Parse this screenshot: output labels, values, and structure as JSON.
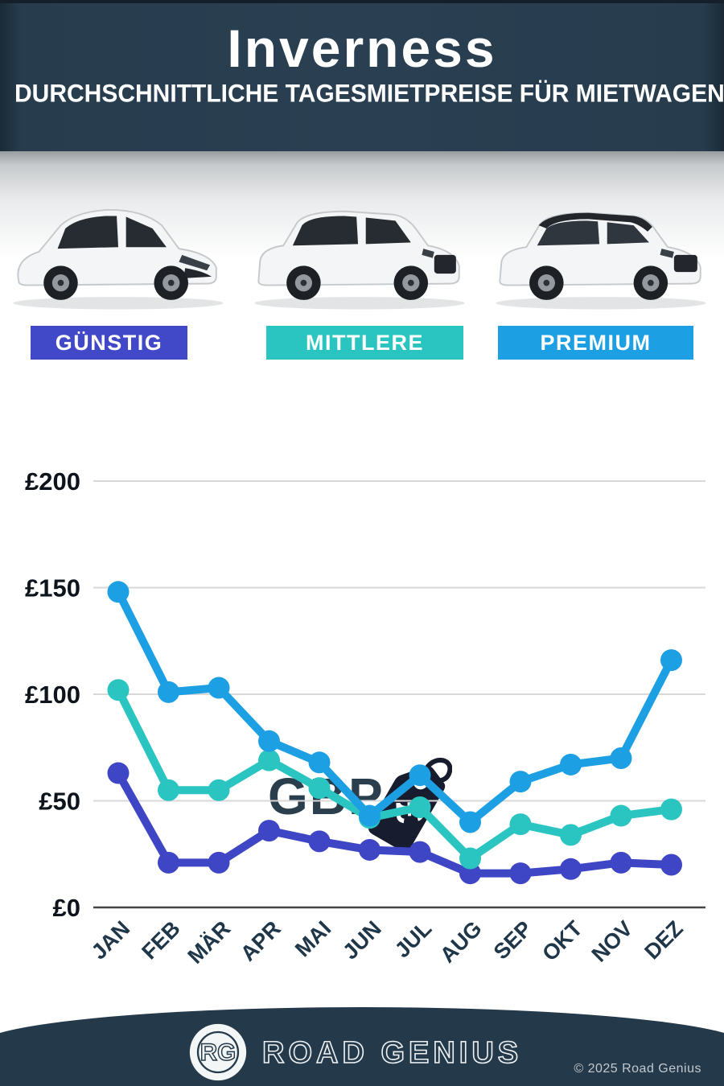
{
  "header": {
    "title": "Inverness",
    "subtitle": "DURCHSCHNITTLICHE TAGESMIETPREISE FÜR MIETWAGEN"
  },
  "tiers": [
    {
      "label": "GÜNSTIG",
      "color": "#4149c9"
    },
    {
      "label": "MITTLERE",
      "color": "#2bc5c1"
    },
    {
      "label": "PREMIUM",
      "color": "#1d9fe4"
    }
  ],
  "currency": {
    "code": "GBP",
    "tag_symbol": "£"
  },
  "chart_data": {
    "type": "line",
    "title": "Durchschnittliche Tagesmietpreise für Mietwagen in Inverness (GBP)",
    "categories": [
      "JAN",
      "FEB",
      "MÄR",
      "APR",
      "MAI",
      "JUN",
      "JUL",
      "AUG",
      "SEP",
      "OKT",
      "NOV",
      "DEZ"
    ],
    "series": [
      {
        "key": "premium",
        "name": "PREMIUM",
        "color": "#1d9fe4",
        "values": [
          148,
          101,
          103,
          78,
          68,
          43,
          62,
          40,
          59,
          67,
          70,
          116
        ]
      },
      {
        "key": "mittlere",
        "name": "MITTLERE",
        "color": "#2bc5c1",
        "values": [
          102,
          55,
          55,
          69,
          56,
          42,
          47,
          23,
          39,
          34,
          43,
          46
        ]
      },
      {
        "key": "guenstig",
        "name": "GÜNSTIG",
        "color": "#3f46c5",
        "values": [
          63,
          21,
          21,
          36,
          31,
          27,
          26,
          16,
          16,
          18,
          21,
          20
        ]
      }
    ],
    "ylabel_prefix": "£",
    "yticks": [
      0,
      50,
      100,
      150,
      200
    ],
    "ylim": [
      0,
      200
    ],
    "grid": true,
    "legend": "none"
  },
  "footer": {
    "logo_initials": "RG",
    "logo_text": "ROAD GENIUS",
    "copyright": "© 2025 Road Genius"
  }
}
